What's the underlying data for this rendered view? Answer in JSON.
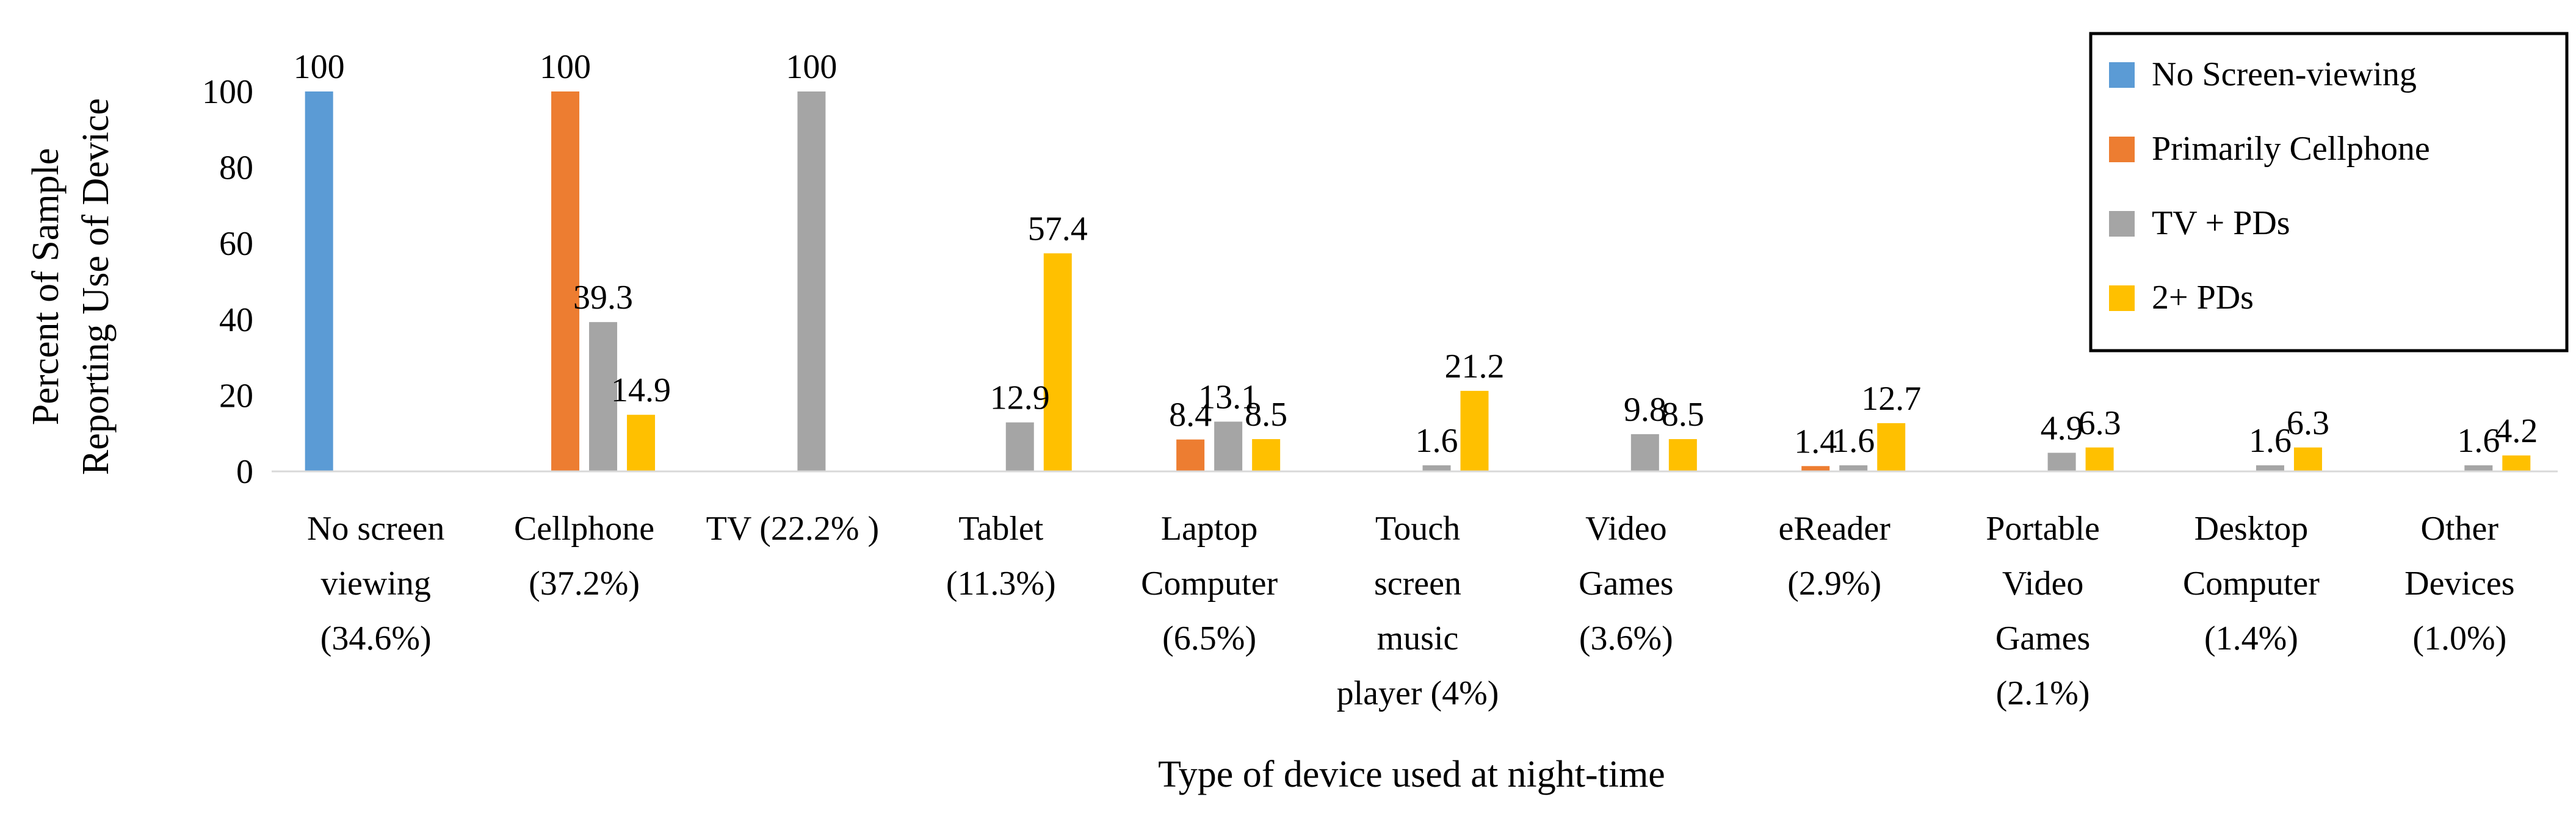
{
  "chart_data": {
    "type": "bar",
    "title": "",
    "xlabel": "Type of device used at night-time",
    "ylabel_lines": [
      "Percent of Sample",
      "Reporting Use of Device"
    ],
    "ylim": [
      0,
      100
    ],
    "yticks": [
      "0",
      "20",
      "40",
      "60",
      "80",
      "100"
    ],
    "grid": false,
    "legend_position": "top-right",
    "categories": [
      [
        "No screen",
        "viewing",
        "(34.6%)"
      ],
      [
        "Cellphone",
        "(37.2%)"
      ],
      [
        "TV (22.2% )"
      ],
      [
        "Tablet",
        "(11.3%)"
      ],
      [
        "Laptop",
        "Computer",
        "(6.5%)"
      ],
      [
        "Touch",
        "screen",
        "music",
        "player (4%)"
      ],
      [
        "Video",
        "Games",
        "(3.6%)"
      ],
      [
        "eReader",
        "(2.9%)"
      ],
      [
        "Portable",
        "Video",
        "Games",
        "(2.1%)"
      ],
      [
        "Desktop",
        "Computer",
        "(1.4%)"
      ],
      [
        "Other",
        "Devices",
        "(1.0%)"
      ]
    ],
    "series": [
      {
        "name": "No Screen-viewing",
        "color": "#5B9BD5",
        "values": [
          100,
          null,
          null,
          null,
          null,
          null,
          null,
          null,
          null,
          null,
          null
        ],
        "labels": [
          "100",
          "",
          "",
          "",
          "",
          "",
          "",
          "",
          "",
          "",
          ""
        ]
      },
      {
        "name": "Primarily Cellphone",
        "color": "#ED7D31",
        "values": [
          null,
          100,
          null,
          null,
          8.4,
          null,
          null,
          1.4,
          null,
          null,
          null
        ],
        "labels": [
          "",
          "100",
          "",
          "",
          "8.4",
          "",
          "",
          "1.4",
          "",
          "",
          ""
        ]
      },
      {
        "name": "TV + PDs",
        "color": "#A5A5A5",
        "values": [
          null,
          39.3,
          100,
          12.9,
          13.1,
          1.6,
          9.8,
          1.6,
          4.9,
          1.6,
          1.6
        ],
        "labels": [
          "",
          "39.3",
          "100",
          "12.9",
          "13.1",
          "1.6",
          "9.8",
          "1.6",
          "4.9",
          "1.6",
          "1.6"
        ]
      },
      {
        "name": "2+ PDs",
        "color": "#FFC000",
        "values": [
          null,
          14.9,
          null,
          57.4,
          8.5,
          21.2,
          8.5,
          12.7,
          6.3,
          6.3,
          4.2
        ],
        "labels": [
          "",
          "14.9",
          "",
          "57.4",
          "8.5",
          "21.2",
          "8.5",
          "12.7",
          "6.3",
          "6.3",
          "4.2"
        ]
      }
    ]
  }
}
